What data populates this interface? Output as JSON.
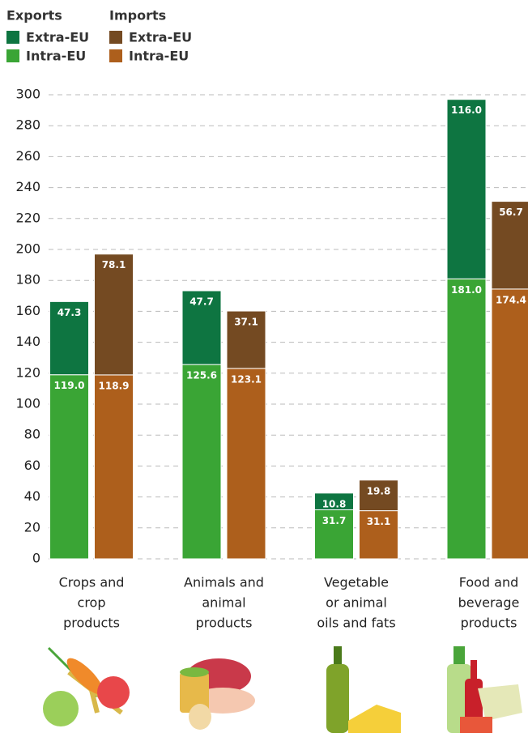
{
  "chart_data": {
    "type": "grouped-stacked-bar",
    "categories": [
      [
        "Crops and",
        "crop",
        "products"
      ],
      [
        "Animals and",
        "animal",
        "products"
      ],
      [
        "Vegetable",
        "or animal",
        "oils and fats"
      ],
      [
        "Food and",
        "beverage",
        "products"
      ]
    ],
    "groups": [
      {
        "name": "Exports",
        "series": [
          {
            "name": "Intra-EU",
            "color": "#3aa535",
            "values": [
              119.0,
              125.6,
              31.7,
              181.0
            ],
            "value_labels": [
              "119.0",
              "125.6",
              "31.7",
              "181.0"
            ]
          },
          {
            "name": "Extra-EU",
            "color": "#0e7541",
            "values": [
              47.3,
              47.7,
              10.8,
              116.0
            ],
            "value_labels": [
              "47.3",
              "47.7",
              "10.8",
              "116.0"
            ]
          }
        ]
      },
      {
        "name": "Imports",
        "series": [
          {
            "name": "Intra-EU",
            "color": "#ad5f1c",
            "values": [
              118.9,
              123.1,
              31.1,
              174.4
            ],
            "value_labels": [
              "118.9",
              "123.1",
              "31.1",
              "174.4"
            ]
          },
          {
            "name": "Extra-EU",
            "color": "#744a22",
            "values": [
              78.1,
              37.1,
              19.8,
              56.7
            ],
            "value_labels": [
              "78.1",
              "37.1",
              "19.8",
              "56.7"
            ]
          }
        ]
      }
    ],
    "ylim": [
      0,
      300
    ],
    "yticks": [
      0,
      20,
      40,
      60,
      80,
      100,
      120,
      140,
      160,
      180,
      200,
      220,
      240,
      260,
      280,
      300
    ],
    "grid": true
  }
}
